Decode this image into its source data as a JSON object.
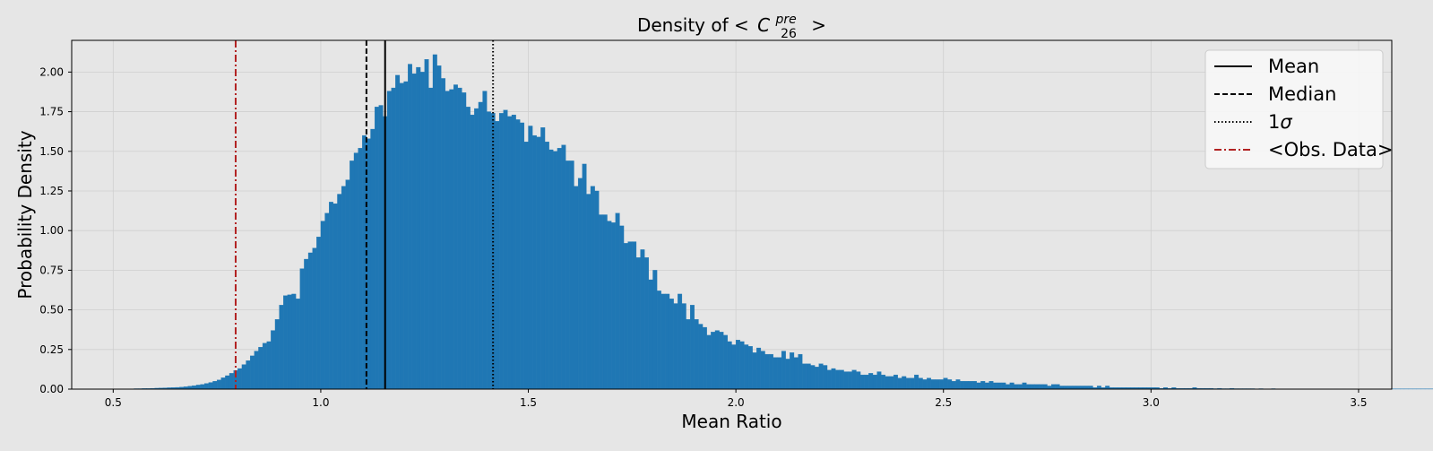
{
  "chart_data": {
    "type": "bar",
    "title_prefix": "Density of ",
    "title_math": {
      "open": "<",
      "symbol": "C",
      "superscript": "pre",
      "subscript": "26",
      "close": ">"
    },
    "xlabel": "Mean Ratio",
    "ylabel": "Probability Density",
    "xlim": [
      0.4,
      3.58
    ],
    "ylim": [
      0,
      2.2
    ],
    "xticks": [
      0.5,
      1.0,
      1.5,
      2.0,
      2.5,
      3.0,
      3.5
    ],
    "xtick_labels": [
      "0.5",
      "1.0",
      "1.5",
      "2.0",
      "2.5",
      "3.0",
      "3.5"
    ],
    "yticks": [
      0,
      0.25,
      0.5,
      0.75,
      1.0,
      1.25,
      1.5,
      1.75,
      2.0
    ],
    "ytick_labels": [
      "0.00",
      "0.25",
      "0.50",
      "0.75",
      "1.00",
      "1.25",
      "1.50",
      "1.75",
      "2.00"
    ],
    "grid": true,
    "bar_color": "#1f77b4",
    "histogram": {
      "bin_start": 0.55,
      "bin_width": 0.01,
      "values": [
        0.003,
        0.003,
        0.004,
        0.004,
        0.005,
        0.006,
        0.007,
        0.008,
        0.009,
        0.01,
        0.011,
        0.013,
        0.015,
        0.019,
        0.022,
        0.026,
        0.03,
        0.036,
        0.042,
        0.05,
        0.058,
        0.072,
        0.085,
        0.1,
        0.118,
        0.13,
        0.155,
        0.18,
        0.21,
        0.24,
        0.265,
        0.29,
        0.3,
        0.37,
        0.44,
        0.53,
        0.59,
        0.595,
        0.6,
        0.57,
        0.76,
        0.82,
        0.86,
        0.89,
        0.96,
        1.06,
        1.11,
        1.18,
        1.17,
        1.23,
        1.28,
        1.32,
        1.44,
        1.49,
        1.52,
        1.6,
        1.58,
        1.64,
        1.78,
        1.79,
        1.72,
        1.88,
        1.9,
        1.98,
        1.93,
        1.94,
        2.05,
        1.99,
        2.03,
        2.0,
        2.08,
        1.9,
        2.11,
        2.04,
        1.96,
        1.88,
        1.89,
        1.92,
        1.9,
        1.87,
        1.78,
        1.73,
        1.77,
        1.81,
        1.88,
        1.75,
        1.74,
        1.69,
        1.74,
        1.76,
        1.72,
        1.73,
        1.7,
        1.68,
        1.56,
        1.66,
        1.6,
        1.59,
        1.65,
        1.56,
        1.51,
        1.5,
        1.52,
        1.54,
        1.44,
        1.44,
        1.28,
        1.33,
        1.42,
        1.23,
        1.28,
        1.25,
        1.1,
        1.1,
        1.06,
        1.05,
        1.11,
        1.03,
        0.92,
        0.93,
        0.93,
        0.83,
        0.88,
        0.83,
        0.69,
        0.75,
        0.62,
        0.6,
        0.6,
        0.57,
        0.54,
        0.6,
        0.54,
        0.44,
        0.53,
        0.44,
        0.41,
        0.39,
        0.34,
        0.36,
        0.37,
        0.36,
        0.34,
        0.3,
        0.28,
        0.31,
        0.3,
        0.28,
        0.27,
        0.23,
        0.26,
        0.24,
        0.22,
        0.22,
        0.2,
        0.2,
        0.24,
        0.19,
        0.23,
        0.2,
        0.22,
        0.16,
        0.16,
        0.15,
        0.14,
        0.16,
        0.15,
        0.12,
        0.13,
        0.12,
        0.12,
        0.11,
        0.11,
        0.12,
        0.11,
        0.09,
        0.09,
        0.1,
        0.09,
        0.11,
        0.09,
        0.08,
        0.08,
        0.09,
        0.07,
        0.08,
        0.07,
        0.07,
        0.09,
        0.07,
        0.06,
        0.07,
        0.06,
        0.06,
        0.06,
        0.07,
        0.06,
        0.05,
        0.06,
        0.05,
        0.05,
        0.05,
        0.05,
        0.04,
        0.05,
        0.04,
        0.05,
        0.04,
        0.04,
        0.04,
        0.03,
        0.04,
        0.03,
        0.03,
        0.04,
        0.03,
        0.03,
        0.03,
        0.03,
        0.03,
        0.02,
        0.03,
        0.03,
        0.02,
        0.02,
        0.02,
        0.02,
        0.02,
        0.02,
        0.02,
        0.02,
        0.01,
        0.02,
        0.01,
        0.02,
        0.01,
        0.01,
        0.01,
        0.01,
        0.01,
        0.01,
        0.01,
        0.01,
        0.01,
        0.01,
        0.01,
        0.01,
        0.005,
        0.01,
        0.005,
        0.01,
        0.005,
        0.005,
        0.005,
        0.005,
        0.01,
        0.005,
        0.005,
        0.005,
        0.005,
        0.003,
        0.005,
        0.003,
        0.003,
        0.005,
        0.003,
        0.003,
        0.003,
        0.003,
        0.003,
        0.002,
        0.003,
        0.002,
        0.002,
        0.003,
        0.002,
        0.002,
        0.002,
        0.002,
        0.002,
        0.002,
        0.002,
        0.002,
        0.002,
        0.002,
        0.002,
        0.002,
        0.002,
        0.001,
        0.002,
        0.001,
        0.002,
        0.001,
        0.001,
        0.001,
        0.001,
        0.001,
        0.001,
        0.001,
        0.001,
        0.002,
        0.001,
        0.001,
        0.001,
        0.001,
        0.001,
        0.001,
        0.001,
        0.001,
        0.001,
        0.001,
        0.001,
        0.001,
        0.001,
        0.001,
        0.001,
        0.001,
        0.001,
        0.001,
        0.001,
        0.001,
        0.001,
        0.001,
        0.001,
        0.001,
        0.001,
        0.001,
        0.001,
        0.001,
        0.001,
        0.001,
        0.001,
        0.001,
        0.001,
        0.001,
        0.001,
        0.001,
        0.001,
        0.001,
        0.001,
        0.001,
        0.001,
        0.001,
        0.001,
        0.001,
        0.001,
        0.001,
        0.001,
        0.001,
        0.001,
        0.001,
        0.001,
        0.001,
        0.001,
        0.001,
        0.001,
        0.001,
        0.001,
        0.001
      ]
    },
    "reference_lines": [
      {
        "name": "Mean",
        "x": 1.155,
        "color": "#000000",
        "style": "solid"
      },
      {
        "name": "Median",
        "x": 1.11,
        "color": "#000000",
        "style": "dashed"
      },
      {
        "name": "1σ",
        "x": 1.415,
        "color": "#000000",
        "style": "dotted"
      },
      {
        "name": "<Obs. Data>",
        "x": 0.795,
        "color": "#b22222",
        "style": "dashdot"
      }
    ],
    "legend": {
      "placement": "top-right",
      "entries": [
        {
          "label_text": "Mean",
          "style": "solid",
          "color": "#000000"
        },
        {
          "label_text": "Median",
          "style": "dashed",
          "color": "#000000"
        },
        {
          "label_prefix": "1",
          "label_math": "σ",
          "style": "dotted",
          "color": "#000000"
        },
        {
          "label_text": "<Obs. Data>",
          "style": "dashdot",
          "color": "#b22222"
        }
      ]
    }
  }
}
